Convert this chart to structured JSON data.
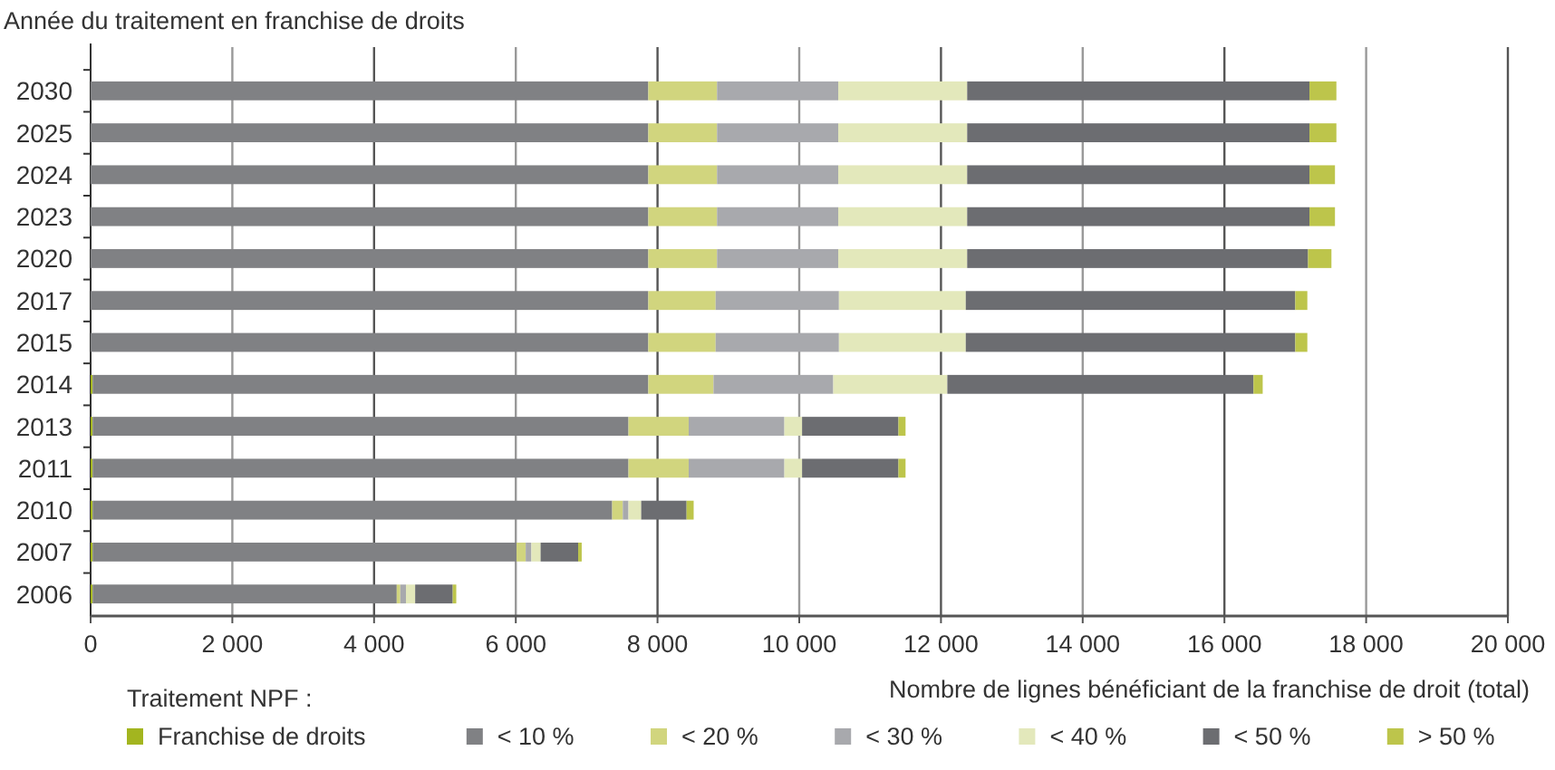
{
  "chart_data": {
    "type": "bar",
    "orientation": "horizontal",
    "stacked": true,
    "ylabel": "Année du traitement en franchise de droits",
    "xlabel": "Nombre de lignes bénéficiant de la franchise de droit (total)",
    "legend_title": "Traitement NPF :",
    "legend": "bottom",
    "grid": "x",
    "categories": [
      "2030",
      "2025",
      "2024",
      "2023",
      "2020",
      "2017",
      "2015",
      "2014",
      "2013",
      "2011",
      "2010",
      "2007",
      "2006"
    ],
    "xlim": [
      0,
      20000
    ],
    "xticks": [
      0,
      {
        "value": 2000,
        "label": "2 000"
      },
      {
        "value": 4000,
        "label": "4 000"
      },
      {
        "value": 6000,
        "label": "6 000"
      },
      {
        "value": 8000,
        "label": "8 000"
      },
      {
        "value": 10000,
        "label": "10 000"
      },
      {
        "value": 12000,
        "label": "12 000"
      },
      {
        "value": 14000,
        "label": "14 000"
      },
      {
        "value": 16000,
        "label": "16 000"
      },
      {
        "value": 18000,
        "label": "18 000"
      },
      {
        "value": 20000,
        "label": "20 000"
      }
    ],
    "series": [
      {
        "name": "Franchise de droits",
        "color": "#a3b51f",
        "values": [
          0,
          0,
          0,
          0,
          0,
          0,
          0,
          30,
          30,
          30,
          30,
          30,
          30
        ]
      },
      {
        "name": "< 10 %",
        "color": "#808184",
        "values": [
          7870,
          7870,
          7870,
          7870,
          7870,
          7870,
          7870,
          7840,
          7560,
          7560,
          7330,
          5980,
          4290
        ]
      },
      {
        "name": "< 20 %",
        "color": "#d1d57e",
        "values": [
          970,
          970,
          970,
          970,
          970,
          950,
          950,
          920,
          850,
          850,
          150,
          130,
          50
        ]
      },
      {
        "name": "< 30 %",
        "color": "#a8a9ad",
        "values": [
          1710,
          1710,
          1710,
          1710,
          1710,
          1740,
          1740,
          1690,
          1350,
          1350,
          80,
          80,
          80
        ]
      },
      {
        "name": "< 40 %",
        "color": "#e3e8bb",
        "values": [
          1820,
          1820,
          1820,
          1820,
          1820,
          1790,
          1790,
          1610,
          250,
          250,
          180,
          130,
          130
        ]
      },
      {
        "name": "< 50 %",
        "color": "#6c6d71",
        "values": [
          4830,
          4830,
          4830,
          4830,
          4810,
          4650,
          4650,
          4320,
          1360,
          1360,
          640,
          530,
          530
        ]
      },
      {
        "name": "> 50 %",
        "color": "#bdc54b",
        "values": [
          380,
          380,
          360,
          360,
          330,
          170,
          170,
          130,
          100,
          100,
          100,
          50,
          50
        ]
      }
    ]
  }
}
